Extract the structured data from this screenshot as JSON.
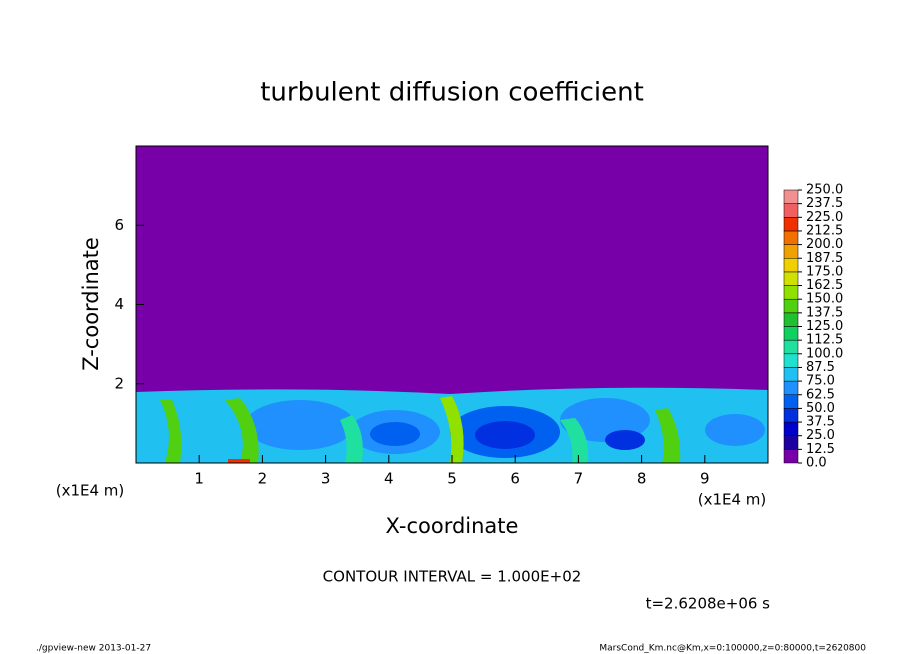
{
  "chart_data": {
    "type": "contour",
    "title": "turbulent diffusion coefficient",
    "x_label": "X-coordinate",
    "y_label": "Z-coordinate",
    "x_unit": "(x1E4 m)",
    "y_unit": "(x1E4 m)",
    "xlim": [
      0,
      10
    ],
    "xticks": [
      1,
      2,
      3,
      4,
      5,
      6,
      7,
      8,
      9
    ],
    "ylim": [
      0,
      8
    ],
    "yticks": [
      2,
      4,
      6
    ],
    "colorbar": {
      "levels": [
        {
          "value": 0,
          "label": "0.0"
        },
        12.5,
        {
          "value": 25,
          "label": "25.0"
        },
        37.5,
        {
          "value": 50,
          "label": "50.0"
        },
        62.5,
        {
          "value": 75,
          "label": "75.0"
        },
        87.5,
        {
          "value": 100,
          "label": "100.0"
        },
        112.5,
        {
          "value": 125,
          "label": "125.0"
        },
        137.5,
        {
          "value": 150,
          "label": "150.0"
        },
        162.5,
        {
          "value": 175,
          "label": "175.0"
        },
        187.5,
        {
          "value": 200,
          "label": "200.0"
        },
        212.5,
        {
          "value": 225,
          "label": "225.0"
        },
        237.5,
        {
          "value": 250,
          "label": "250.0"
        }
      ],
      "colors": [
        "#7800a8",
        "#1c00a0",
        "#0000cc",
        "#0030e0",
        "#0060f0",
        "#2090ff",
        "#20c0f0",
        "#20e0d0",
        "#20e0a0",
        "#10d060",
        "#20c030",
        "#50d010",
        "#90e000",
        "#d0e000",
        "#f0d000",
        "#f0a000",
        "#f07000",
        "#f03000",
        "#f06060",
        "#f09090"
      ]
    },
    "contour_interval": "CONTOUR INTERVAL = 1.000E+02",
    "time_label": "t=2.6208e+06 s",
    "footer_left": "./gpview-new  2013-01-27",
    "footer_right": "MarsCond_Km.nc@Km,x=0:100000,z=0:80000,t=2620800"
  }
}
